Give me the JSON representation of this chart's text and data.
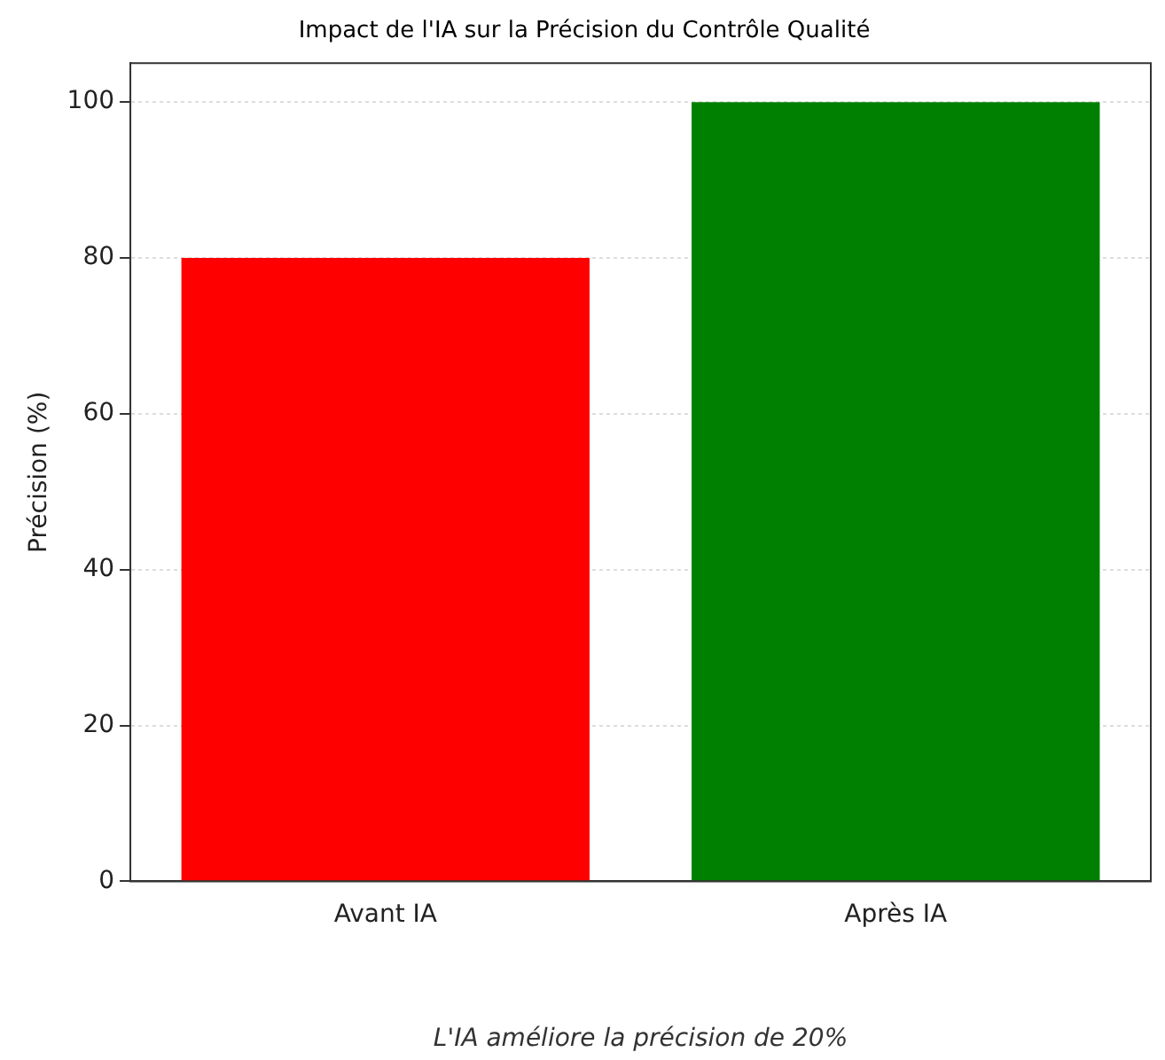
{
  "chart_data": {
    "type": "bar",
    "title": "Impact de l'IA sur la Précision du Contrôle Qualité",
    "ylabel": "Précision (%)",
    "categories": [
      "Avant IA",
      "Après IA"
    ],
    "values": [
      80,
      100
    ],
    "colors": [
      "#ff0000",
      "#008000"
    ],
    "ylim": [
      0,
      105
    ],
    "yticks": [
      0,
      20,
      40,
      60,
      80,
      100
    ],
    "grid": "y",
    "legend": false,
    "annotations": [
      "L'IA améliore la précision de 20%"
    ]
  }
}
